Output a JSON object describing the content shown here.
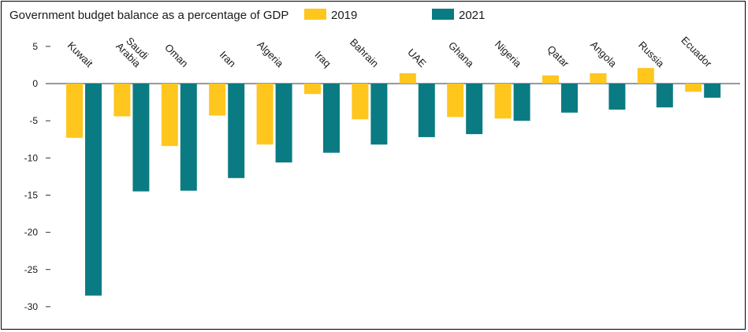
{
  "chart_data": {
    "type": "bar",
    "title": "Government budget balance as a percentage of GDP",
    "categories": [
      [
        "Kuwait"
      ],
      [
        "Saudi",
        "Arabia"
      ],
      [
        "Oman"
      ],
      [
        "Iran"
      ],
      [
        "Algeria"
      ],
      [
        "Iraq"
      ],
      [
        "Bahrain"
      ],
      [
        "UAE"
      ],
      [
        "Ghana"
      ],
      [
        "Nigeria"
      ],
      [
        "Qatar"
      ],
      [
        "Angola"
      ],
      [
        "Russia"
      ],
      [
        "Ecuador"
      ]
    ],
    "series": [
      {
        "name": "2019",
        "color": "#FFC61E",
        "values": [
          -7.3,
          -4.4,
          -8.4,
          -4.3,
          -8.2,
          -1.4,
          -4.8,
          1.4,
          -4.5,
          -4.7,
          1.1,
          1.4,
          2.1,
          -1.1
        ]
      },
      {
        "name": "2021",
        "color": "#0A7B82",
        "values": [
          -28.5,
          -14.5,
          -14.4,
          -12.7,
          -10.6,
          -9.3,
          -8.2,
          -7.2,
          -6.8,
          -5.0,
          -3.9,
          -3.5,
          -3.2,
          -1.9
        ]
      }
    ],
    "yticks": [
      5,
      0,
      -5,
      -10,
      -15,
      -20,
      -25,
      -30
    ],
    "ylim": [
      -30,
      5
    ],
    "xlabel": "",
    "ylabel": "",
    "grid": false,
    "legend_position": "top"
  }
}
